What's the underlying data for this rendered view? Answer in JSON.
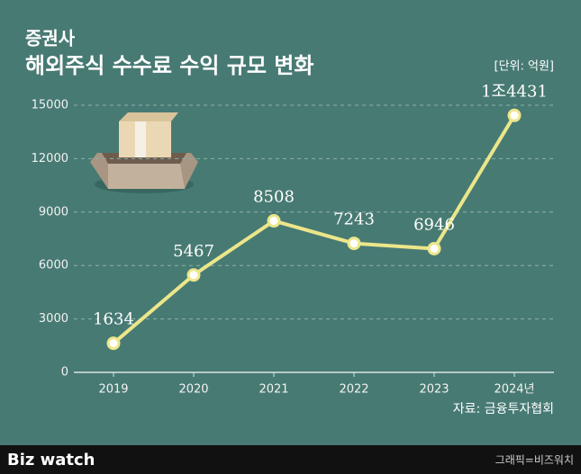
{
  "chart_data": {
    "type": "line",
    "supertitle": "증권사",
    "title": "해외주식 수수료 수익 규모 변화",
    "unit": "[단위: 억원]",
    "source": "자료: 금융투자협회",
    "categories": [
      "2019",
      "2020",
      "2021",
      "2022",
      "2023",
      "2024년"
    ],
    "values": [
      1634,
      5467,
      8508,
      7243,
      6946,
      14431
    ],
    "value_labels": [
      "1634",
      "5467",
      "8508",
      "7243",
      "6946",
      "1조4431"
    ],
    "color": "#ece68a",
    "ylim": [
      0,
      15000
    ],
    "yticks": [
      0,
      3000,
      6000,
      9000,
      12000,
      15000
    ],
    "grid": true
  },
  "footer": {
    "brand": "Biz watch",
    "credit": "그래픽=비즈워치"
  }
}
